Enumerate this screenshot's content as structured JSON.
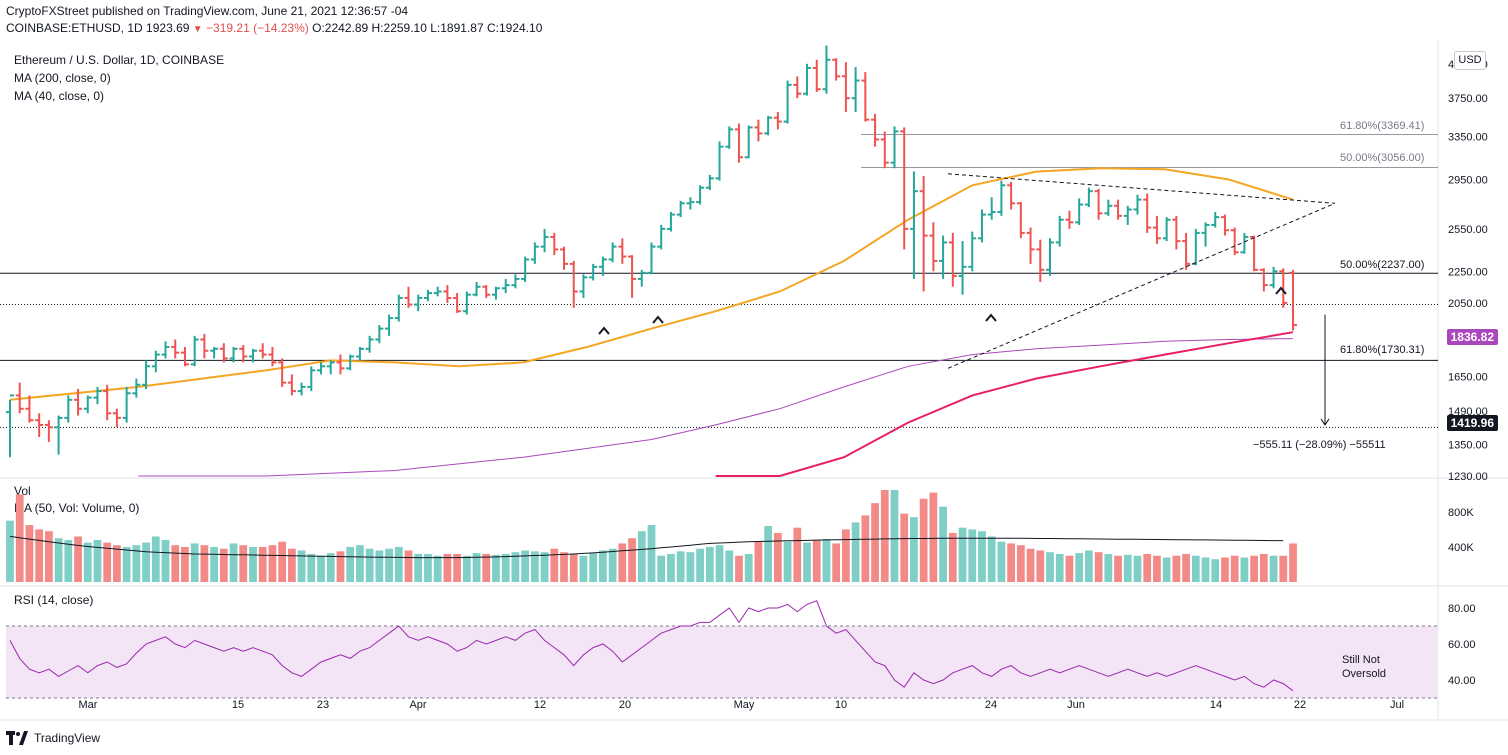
{
  "header": {
    "publisher_line": "CryptoFXStreet published on TradingView.com, June 21, 2021 12:36:57 -04",
    "symbol": "COINBASE:ETHUSD, 1D",
    "last": "1923.69",
    "arrow": "▼",
    "change": "−319.21 (−14.23%)",
    "open": "O:2242.89",
    "high": "H:2259.10",
    "low": "L:1891.87",
    "close": "C:1924.10"
  },
  "legend": {
    "title": "Ethereum / U.S. Dollar, 1D, COINBASE",
    "ma200": "MA (200, close, 0)",
    "ma40": "MA (40, close, 0)",
    "vol": "Vol",
    "vol_ma": "MA (50, Vol: Volume, 0)",
    "rsi": "RSI (14, close)"
  },
  "currency_button": "USD",
  "annotations": {
    "fib_61_top": "61.80%(3369.41)",
    "fib_50_top": "50.00%(3056.00)",
    "fib_50_mid": "50.00%(2237.00)",
    "fib_61_bot": "61.80%(1730.31)",
    "measure": "−555.11 (−28.09%) −55511",
    "rsi_note_1": "Still Not",
    "rsi_note_2": "Oversold"
  },
  "price_labels": {
    "current": "1836.82",
    "target": "1419.96"
  },
  "footer": {
    "brand": "TradingView"
  },
  "colors": {
    "up": "#26a69a",
    "down": "#ef5350",
    "ma40": "#f5a623",
    "ma200": "#e91e63",
    "ma_purple": "#ab47bc",
    "rsi_line": "#9c27b0",
    "rsi_band": "#f3e5f5",
    "current_label_bg": "#ab47bc"
  },
  "chart_data": {
    "type": "ohlc",
    "symbol": "ETHUSD",
    "timeframe": "1D",
    "x_tick_labels": [
      "Mar",
      "15",
      "23",
      "Apr",
      "12",
      "20",
      "May",
      "10",
      "24",
      "Jun",
      "14",
      "22",
      "Jul"
    ],
    "price_axis_labels": [
      "4150.00",
      "3750.00",
      "3350.00",
      "2950.00",
      "2550.00",
      "2250.00",
      "2050.00",
      "1650.00",
      "1490.00",
      "1350.00",
      "1230.00"
    ],
    "price_range": [
      1230,
      4400
    ],
    "log_scale": true,
    "volume_axis_labels": [
      "800K",
      "400K"
    ],
    "rsi_axis_labels": [
      "80.00",
      "60.00",
      "40.00"
    ],
    "rsi_band": [
      30,
      70
    ],
    "horizontal_levels": [
      3369.41,
      3056.0,
      2237.0,
      2040.0,
      1730.31,
      1419.96
    ],
    "ohlc": [
      [
        1485,
        1540,
        1300,
        1560
      ],
      [
        1560,
        1620,
        1480,
        1500
      ],
      [
        1500,
        1560,
        1440,
        1450
      ],
      [
        1450,
        1480,
        1380,
        1430
      ],
      [
        1430,
        1450,
        1360,
        1420
      ],
      [
        1420,
        1470,
        1310,
        1460
      ],
      [
        1460,
        1560,
        1440,
        1540
      ],
      [
        1540,
        1590,
        1470,
        1500
      ],
      [
        1500,
        1560,
        1480,
        1550
      ],
      [
        1550,
        1600,
        1520,
        1580
      ],
      [
        1580,
        1610,
        1450,
        1480
      ],
      [
        1480,
        1500,
        1420,
        1460
      ],
      [
        1460,
        1600,
        1440,
        1570
      ],
      [
        1570,
        1640,
        1550,
        1610
      ],
      [
        1610,
        1730,
        1590,
        1700
      ],
      [
        1700,
        1780,
        1670,
        1760
      ],
      [
        1760,
        1830,
        1740,
        1800
      ],
      [
        1800,
        1840,
        1740,
        1770
      ],
      [
        1770,
        1800,
        1700,
        1710
      ],
      [
        1710,
        1860,
        1700,
        1840
      ],
      [
        1840,
        1870,
        1740,
        1780
      ],
      [
        1780,
        1800,
        1740,
        1790
      ],
      [
        1790,
        1820,
        1720,
        1740
      ],
      [
        1740,
        1800,
        1720,
        1790
      ],
      [
        1790,
        1810,
        1720,
        1750
      ],
      [
        1750,
        1790,
        1720,
        1780
      ],
      [
        1780,
        1820,
        1740,
        1760
      ],
      [
        1760,
        1800,
        1700,
        1720
      ],
      [
        1720,
        1740,
        1600,
        1620
      ],
      [
        1620,
        1660,
        1560,
        1580
      ],
      [
        1580,
        1620,
        1560,
        1600
      ],
      [
        1600,
        1700,
        1580,
        1680
      ],
      [
        1680,
        1720,
        1660,
        1700
      ],
      [
        1700,
        1730,
        1660,
        1720
      ],
      [
        1720,
        1760,
        1660,
        1690
      ],
      [
        1690,
        1760,
        1680,
        1750
      ],
      [
        1750,
        1800,
        1730,
        1790
      ],
      [
        1790,
        1860,
        1770,
        1840
      ],
      [
        1840,
        1920,
        1820,
        1900
      ],
      [
        1900,
        1980,
        1860,
        1960
      ],
      [
        1960,
        2100,
        1940,
        2080
      ],
      [
        2080,
        2150,
        2020,
        2040
      ],
      [
        2040,
        2100,
        2000,
        2080
      ],
      [
        2080,
        2130,
        2060,
        2110
      ],
      [
        2110,
        2150,
        2090,
        2120
      ],
      [
        2120,
        2160,
        2050,
        2080
      ],
      [
        2080,
        2110,
        1990,
        2000
      ],
      [
        2000,
        2120,
        1980,
        2100
      ],
      [
        2100,
        2180,
        2090,
        2150
      ],
      [
        2150,
        2160,
        2080,
        2100
      ],
      [
        2100,
        2150,
        2070,
        2140
      ],
      [
        2140,
        2200,
        2110,
        2160
      ],
      [
        2160,
        2230,
        2140,
        2200
      ],
      [
        2200,
        2350,
        2180,
        2330
      ],
      [
        2330,
        2450,
        2300,
        2420
      ],
      [
        2420,
        2550,
        2380,
        2490
      ],
      [
        2490,
        2520,
        2360,
        2400
      ],
      [
        2400,
        2420,
        2260,
        2300
      ],
      [
        2300,
        2320,
        2020,
        2120
      ],
      [
        2120,
        2230,
        2080,
        2210
      ],
      [
        2210,
        2300,
        2190,
        2280
      ],
      [
        2280,
        2350,
        2220,
        2330
      ],
      [
        2330,
        2450,
        2310,
        2420
      ],
      [
        2420,
        2480,
        2300,
        2350
      ],
      [
        2350,
        2360,
        2080,
        2200
      ],
      [
        2200,
        2260,
        2150,
        2240
      ],
      [
        2240,
        2450,
        2230,
        2420
      ],
      [
        2420,
        2580,
        2400,
        2550
      ],
      [
        2550,
        2680,
        2530,
        2660
      ],
      [
        2660,
        2770,
        2640,
        2750
      ],
      [
        2750,
        2800,
        2700,
        2760
      ],
      [
        2760,
        2900,
        2740,
        2880
      ],
      [
        2880,
        2990,
        2860,
        2960
      ],
      [
        2960,
        3300,
        2940,
        3250
      ],
      [
        3250,
        3450,
        3230,
        3420
      ],
      [
        3420,
        3480,
        3100,
        3150
      ],
      [
        3150,
        3460,
        3140,
        3440
      ],
      [
        3440,
        3520,
        3300,
        3380
      ],
      [
        3380,
        3560,
        3360,
        3540
      ],
      [
        3540,
        3600,
        3420,
        3500
      ],
      [
        3500,
        3950,
        3480,
        3900
      ],
      [
        3900,
        4000,
        3750,
        3800
      ],
      [
        3800,
        4150,
        3780,
        4100
      ],
      [
        4100,
        4200,
        3820,
        3850
      ],
      [
        3850,
        4380,
        3800,
        4200
      ],
      [
        4200,
        4220,
        3950,
        4000
      ],
      [
        4000,
        4170,
        3600,
        3750
      ],
      [
        3750,
        4110,
        3600,
        3950
      ],
      [
        3950,
        4050,
        3500,
        3520
      ],
      [
        3520,
        3580,
        3250,
        3320
      ],
      [
        3320,
        3400,
        3050,
        3100
      ],
      [
        3100,
        3450,
        3050,
        3400
      ],
      [
        3400,
        3440,
        2400,
        2550
      ],
      [
        2550,
        3020,
        2200,
        2850
      ],
      [
        2850,
        2980,
        2120,
        2500
      ],
      [
        2500,
        2600,
        2250,
        2320
      ],
      [
        2320,
        2500,
        2200,
        2450
      ],
      [
        2450,
        2520,
        2150,
        2220
      ],
      [
        2220,
        2460,
        2100,
        2280
      ],
      [
        2280,
        2530,
        2250,
        2480
      ],
      [
        2480,
        2700,
        2450,
        2660
      ],
      [
        2660,
        2800,
        2620,
        2680
      ],
      [
        2680,
        2940,
        2650,
        2900
      ],
      [
        2900,
        2930,
        2700,
        2750
      ],
      [
        2750,
        2760,
        2480,
        2520
      ],
      [
        2520,
        2560,
        2300,
        2400
      ],
      [
        2400,
        2470,
        2180,
        2260
      ],
      [
        2260,
        2480,
        2220,
        2450
      ],
      [
        2450,
        2650,
        2420,
        2620
      ],
      [
        2620,
        2690,
        2550,
        2600
      ],
      [
        2600,
        2790,
        2580,
        2740
      ],
      [
        2740,
        2880,
        2720,
        2850
      ],
      [
        2850,
        2870,
        2620,
        2670
      ],
      [
        2670,
        2780,
        2650,
        2730
      ],
      [
        2730,
        2780,
        2620,
        2650
      ],
      [
        2650,
        2730,
        2580,
        2700
      ],
      [
        2700,
        2820,
        2660,
        2780
      ],
      [
        2780,
        2830,
        2520,
        2560
      ],
      [
        2560,
        2650,
        2440,
        2480
      ],
      [
        2480,
        2640,
        2460,
        2620
      ],
      [
        2620,
        2650,
        2400,
        2460
      ],
      [
        2460,
        2520,
        2260,
        2300
      ],
      [
        2300,
        2550,
        2290,
        2520
      ],
      [
        2520,
        2600,
        2420,
        2580
      ],
      [
        2580,
        2680,
        2560,
        2640
      ],
      [
        2640,
        2660,
        2500,
        2540
      ],
      [
        2540,
        2560,
        2360,
        2380
      ],
      [
        2380,
        2520,
        2370,
        2490
      ],
      [
        2490,
        2500,
        2250,
        2260
      ],
      [
        2260,
        2270,
        2120,
        2160
      ],
      [
        2160,
        2280,
        2140,
        2250
      ],
      [
        2250,
        2270,
        2020,
        2050
      ],
      [
        2240,
        2260,
        1890,
        1920
      ]
    ],
    "ma40_points": [
      [
        0,
        1540
      ],
      [
        0.1,
        1600
      ],
      [
        0.2,
        1680
      ],
      [
        0.25,
        1730
      ],
      [
        0.3,
        1720
      ],
      [
        0.35,
        1700
      ],
      [
        0.4,
        1720
      ],
      [
        0.45,
        1800
      ],
      [
        0.5,
        1900
      ],
      [
        0.55,
        2000
      ],
      [
        0.6,
        2120
      ],
      [
        0.65,
        2320
      ],
      [
        0.7,
        2620
      ],
      [
        0.75,
        2900
      ],
      [
        0.8,
        3020
      ],
      [
        0.85,
        3050
      ],
      [
        0.9,
        3040
      ],
      [
        0.95,
        2950
      ],
      [
        1,
        2780
      ]
    ],
    "ma200_points": [
      [
        0.55,
        1020
      ],
      [
        0.6,
        1150
      ],
      [
        0.65,
        1300
      ],
      [
        0.7,
        1440
      ],
      [
        0.75,
        1560
      ],
      [
        0.8,
        1640
      ],
      [
        0.85,
        1700
      ],
      [
        0.9,
        1760
      ],
      [
        0.95,
        1820
      ],
      [
        1,
        1880
      ]
    ],
    "ma_purple_points": [
      [
        0.1,
        1150
      ],
      [
        0.2,
        1200
      ],
      [
        0.3,
        1250
      ],
      [
        0.4,
        1300
      ],
      [
        0.5,
        1370
      ],
      [
        0.55,
        1430
      ],
      [
        0.6,
        1500
      ],
      [
        0.65,
        1600
      ],
      [
        0.7,
        1700
      ],
      [
        0.75,
        1760
      ],
      [
        0.8,
        1790
      ],
      [
        0.85,
        1810
      ],
      [
        0.9,
        1830
      ],
      [
        0.95,
        1840
      ],
      [
        1,
        1845
      ]
    ],
    "volume_thousands": [
      700,
      1000,
      650,
      600,
      580,
      500,
      480,
      520,
      450,
      480,
      450,
      420,
      400,
      420,
      450,
      520,
      480,
      420,
      400,
      440,
      420,
      400,
      380,
      440,
      420,
      400,
      400,
      420,
      460,
      380,
      360,
      320,
      300,
      330,
      350,
      400,
      420,
      380,
      360,
      380,
      400,
      360,
      320,
      320,
      300,
      320,
      320,
      300,
      330,
      320,
      310,
      320,
      340,
      360,
      350,
      340,
      380,
      340,
      320,
      300,
      330,
      360,
      380,
      440,
      500,
      580,
      650,
      300,
      320,
      350,
      340,
      380,
      400,
      420,
      360,
      300,
      320,
      460,
      640,
      560,
      460,
      620,
      450,
      480,
      490,
      440,
      600,
      680,
      760,
      900,
      1050,
      1050,
      780,
      740,
      950,
      1020,
      860,
      560,
      620,
      600,
      580,
      520,
      460,
      440,
      420,
      380,
      360,
      340,
      320,
      300,
      330,
      360,
      340,
      320,
      300,
      310,
      300,
      320,
      300,
      280,
      300,
      320,
      300,
      280,
      260,
      280,
      300,
      280,
      300,
      320,
      300,
      300,
      440
    ],
    "vol_ma_thousands": [
      520,
      505,
      490,
      475,
      460,
      445,
      430,
      418,
      405,
      395,
      385,
      375,
      365,
      355,
      345,
      340,
      335,
      330,
      325,
      320,
      318,
      316,
      314,
      312,
      310,
      308,
      306,
      304,
      302,
      300,
      298,
      296,
      294,
      292,
      290,
      288,
      286,
      284,
      283,
      282,
      281,
      280,
      279,
      278,
      278,
      278,
      279,
      280,
      282,
      284,
      286,
      290,
      294,
      298,
      302,
      306,
      310,
      315,
      320,
      326,
      332,
      340,
      348,
      356,
      364,
      372,
      380,
      390,
      400,
      410,
      420,
      430,
      440,
      445,
      450,
      455,
      460,
      462,
      465,
      468,
      470,
      472,
      475,
      478,
      480,
      482,
      484,
      486,
      488,
      490,
      492,
      494,
      495,
      496,
      497,
      498,
      499,
      500,
      500,
      500,
      500,
      500,
      500,
      500,
      499,
      498,
      497,
      496,
      495,
      494,
      493,
      492,
      491,
      490,
      489,
      488,
      487,
      486,
      485,
      484,
      483,
      482,
      481,
      480,
      479,
      478,
      477,
      476,
      475,
      474,
      473,
      472
    ],
    "rsi": [
      62,
      52,
      46,
      44,
      46,
      42,
      45,
      48,
      44,
      48,
      50,
      47,
      49,
      55,
      60,
      62,
      64,
      60,
      58,
      62,
      60,
      58,
      56,
      58,
      56,
      58,
      56,
      54,
      48,
      44,
      42,
      46,
      50,
      52,
      54,
      52,
      56,
      58,
      62,
      66,
      70,
      64,
      62,
      64,
      62,
      60,
      56,
      58,
      62,
      60,
      62,
      64,
      62,
      66,
      68,
      62,
      58,
      54,
      48,
      54,
      58,
      60,
      56,
      50,
      54,
      58,
      62,
      66,
      68,
      70,
      70,
      72,
      72,
      76,
      80,
      72,
      80,
      78,
      80,
      80,
      82,
      78,
      82,
      84,
      70,
      66,
      68,
      62,
      56,
      50,
      48,
      40,
      36,
      44,
      40,
      38,
      40,
      44,
      46,
      48,
      44,
      42,
      46,
      48,
      44,
      42,
      44,
      46,
      44,
      46,
      48,
      46,
      44,
      42,
      44,
      46,
      44,
      42,
      44,
      42,
      44,
      46,
      48,
      46,
      44,
      42,
      40,
      42,
      38,
      36,
      40,
      38,
      34
    ]
  }
}
